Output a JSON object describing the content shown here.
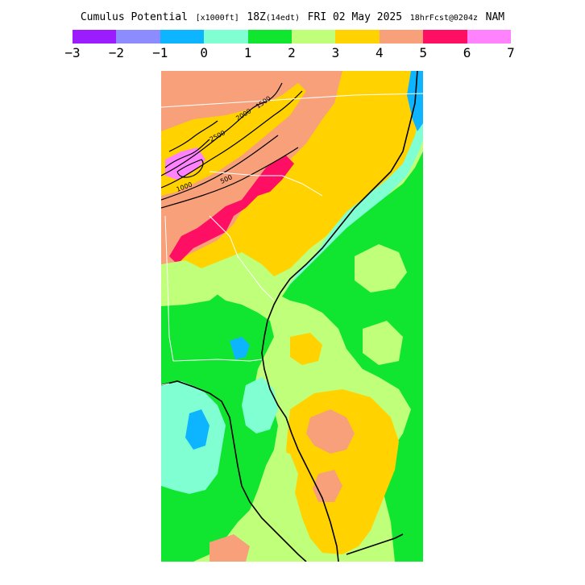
{
  "header": {
    "field_title": "Cumulus Potential",
    "units": "[x1000ft]",
    "valid_time_main": "18Z",
    "valid_time_local": "(14edt)",
    "valid_date": "FRI 02 May 2025",
    "forecast_info": "18hrFcst@0204z",
    "model": "NAM"
  },
  "legend": {
    "colors": [
      "#9b1cff",
      "#8c8cff",
      "#0db4ff",
      "#7fffd2",
      "#10e630",
      "#c0ff7a",
      "#ffd200",
      "#f7a07a",
      "#ff0f64",
      "#ff82ff"
    ],
    "tick_labels": [
      "−3",
      "−2",
      "−1",
      "0",
      "1",
      "2",
      "3",
      "4",
      "5",
      "6",
      "7"
    ]
  },
  "map": {
    "region": "Southeast US (Carolinas, Georgia, Florida)",
    "colors": {
      "cp_neg1": "#0db4ff",
      "cp_0": "#7fffd2",
      "cp_1": "#10e630",
      "cp_2": "#c0ff7a",
      "cp_3": "#ffd200",
      "cp_4": "#f7a07a",
      "cp_5": "#ff0f64",
      "cp_6": "#ff82ff",
      "contour": "#000000",
      "state_border": "#ffffff"
    },
    "contour_labels": [
      "2500",
      "2000",
      "1500",
      "1000",
      "500"
    ]
  }
}
